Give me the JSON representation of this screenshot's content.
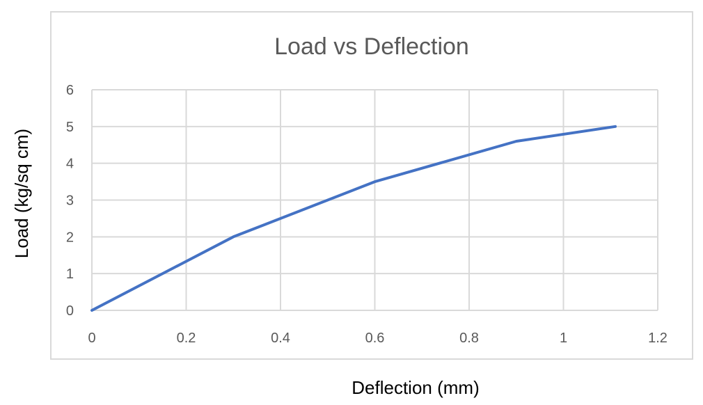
{
  "chart_data": {
    "type": "line",
    "title": "Load vs Deflection",
    "xlabel": "Deflection (mm)",
    "ylabel": "Load (kg/sq cm)",
    "xlim": [
      0,
      1.2
    ],
    "ylim": [
      0,
      6
    ],
    "x_ticks": [
      "0",
      "0.2",
      "0.4",
      "0.6",
      "0.8",
      "1",
      "1.2"
    ],
    "y_ticks": [
      "0",
      "1",
      "2",
      "3",
      "4",
      "5",
      "6"
    ],
    "grid": true,
    "legend": "none",
    "series": [
      {
        "x": [
          0,
          0.3,
          0.6,
          0.9,
          1.11
        ],
        "y": [
          0,
          2,
          3.5,
          4.6,
          5
        ],
        "color": "#4472C4"
      }
    ]
  },
  "colors": {
    "grid": "#D9D9D9",
    "frame": "#D9D9D9",
    "text": "#595959"
  }
}
